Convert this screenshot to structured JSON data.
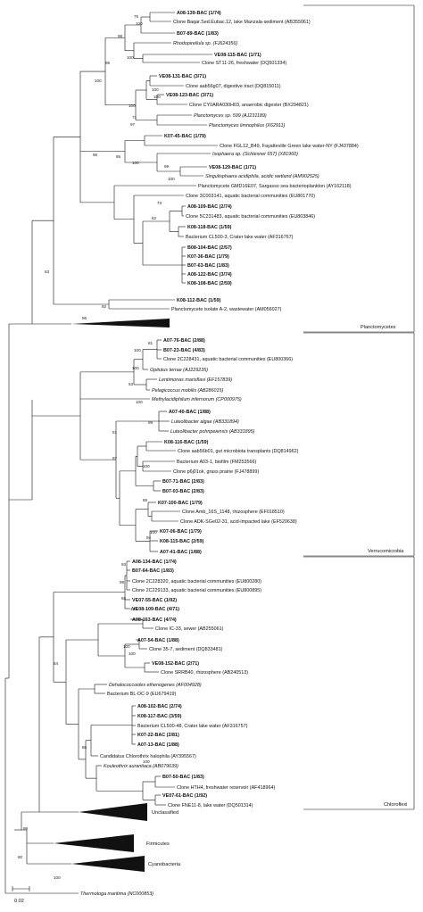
{
  "tree": {
    "leaves": [
      {
        "id": "L1",
        "text": "A08-139-BAC (1/74)",
        "bold": true,
        "italic": false
      },
      {
        "id": "L2",
        "text": "Clone Baqar.Sed.Eubac.12, lake Manzala-sediment (AB355061)",
        "bold": false,
        "italic": false
      },
      {
        "id": "L3",
        "text": "B07-89-BAC (1/83)",
        "bold": true,
        "italic": false
      },
      {
        "id": "L4",
        "text": "Rhodopirellula sp. (FJ624356)",
        "bold": false,
        "italic": true
      },
      {
        "id": "L5",
        "text": "VE08-115-BAC (1/71)",
        "bold": true,
        "italic": false
      },
      {
        "id": "L6",
        "text": "Clone ST11-26, freshwater (DQ501334)",
        "bold": false,
        "italic": false
      },
      {
        "id": "L7",
        "text": "VE08-131-BAC (3/71)",
        "bold": true,
        "italic": false
      },
      {
        "id": "L8",
        "text": "Clone aab56g07, digestive tract (DQ815011)",
        "bold": false,
        "italic": false
      },
      {
        "id": "L9",
        "text": "VE08-123-BAC (3/71)",
        "bold": true,
        "italic": false
      },
      {
        "id": "L10",
        "text": "Clone CY0ARA030H03, anaerobic digester (BX294821)",
        "bold": false,
        "italic": false
      },
      {
        "id": "L11",
        "text": "Planctomyces sp. 599 (AJ231189)",
        "bold": false,
        "italic": true
      },
      {
        "id": "L12",
        "text": "Planctomyces limnophilus (X62911)",
        "bold": false,
        "italic": true
      },
      {
        "id": "L13",
        "text": "K07-45-BAC (1/79)",
        "bold": true,
        "italic": false
      },
      {
        "id": "L14",
        "text": "Clone FGL12_B49, Fayatteville Green lake water-NY (FJ437884)",
        "bold": false,
        "italic": false
      },
      {
        "id": "L15",
        "text": "Isophaera sp. (Schlesner 657) (X81960)",
        "bold": false,
        "italic": true
      },
      {
        "id": "L16",
        "text": "VE08-129-BAC (1/71)",
        "bold": true,
        "italic": false
      },
      {
        "id": "L17",
        "text": "Singulisphaera acidiphila, acidic wetland (AM902525)",
        "bold": false,
        "italic": true
      },
      {
        "id": "L18",
        "text": "Planctomycete GMD16E07, Sargasso sea bacterioplankton (AY162118)",
        "bold": false,
        "italic": false
      },
      {
        "id": "L19",
        "text": "Clone 3C003141, aquatic bacterial communities (EU801770)",
        "bold": false,
        "italic": false
      },
      {
        "id": "L20",
        "text": "A08-109-BAC (2/74)",
        "bold": true,
        "italic": false
      },
      {
        "id": "L21",
        "text": "Clone 5C231483, aquatic bacterial communities (EU803846)",
        "bold": false,
        "italic": false
      },
      {
        "id": "L22",
        "text": "K08-118-BAC (1/59)",
        "bold": true,
        "italic": false
      },
      {
        "id": "L23",
        "text": "Bacterium CL500-3, Crater lake water (AF316767)",
        "bold": false,
        "italic": false
      },
      {
        "id": "L24",
        "text": "B08-104-BAC (2/57)",
        "bold": true,
        "italic": false
      },
      {
        "id": "L25",
        "text": "K07-36-BAC (1/79)",
        "bold": true,
        "italic": false
      },
      {
        "id": "L26",
        "text": "B07-63-BAC (1/83)",
        "bold": true,
        "italic": false
      },
      {
        "id": "L27",
        "text": "A08-122-BAC (3/74)",
        "bold": true,
        "italic": false
      },
      {
        "id": "L28",
        "text": "K08-108-BAC (2/59)",
        "bold": true,
        "italic": false
      },
      {
        "id": "L29",
        "text": "K08-112-BAC (1/59)",
        "bold": true,
        "italic": false
      },
      {
        "id": "L30",
        "text": "Planctomycete isolate A-2, wastewater (AM056027)",
        "bold": false,
        "italic": false
      },
      {
        "id": "L31",
        "text": "A07-76-BAC (2/88)",
        "bold": true,
        "italic": false
      },
      {
        "id": "L32",
        "text": "B07-23-BAC (4/83)",
        "bold": true,
        "italic": false
      },
      {
        "id": "L33",
        "text": "Clone 2C228431, aquatic bacterial communities (EU800366)",
        "bold": false,
        "italic": false
      },
      {
        "id": "L34",
        "text": "Opitutus terrae (AJ229235)",
        "bold": false,
        "italic": true
      },
      {
        "id": "L35",
        "text": "Lentimonas marisflavi (EF157839)",
        "bold": false,
        "italic": true
      },
      {
        "id": "L36",
        "text": "Pelagicoccus mobilis (AB286015)",
        "bold": false,
        "italic": true
      },
      {
        "id": "L37",
        "text": "Methylacidiphilum infernorum (CP000975)",
        "bold": false,
        "italic": true
      },
      {
        "id": "L38",
        "text": "A07-40-BAC (1/88)",
        "bold": true,
        "italic": false
      },
      {
        "id": "L39",
        "text": "Luteolibacter algae (AB331894)",
        "bold": false,
        "italic": true
      },
      {
        "id": "L40",
        "text": "Luteolibacter pohnpeiensis (AB331895)",
        "bold": false,
        "italic": true
      },
      {
        "id": "L41",
        "text": "K08-116-BAC (1/59)",
        "bold": true,
        "italic": false
      },
      {
        "id": "L42",
        "text": "Clone aab56b01, gut microbiota transplants (DQ814962)",
        "bold": false,
        "italic": false
      },
      {
        "id": "L43",
        "text": "Bacterium A03-1, biofilm (FM253566)",
        "bold": false,
        "italic": false
      },
      {
        "id": "L44",
        "text": "Clone p6j01ok, grass prairie (FJ478899)",
        "bold": false,
        "italic": false
      },
      {
        "id": "L45",
        "text": "B07-71-BAC (2/83)",
        "bold": true,
        "italic": false
      },
      {
        "id": "L46",
        "text": "B07-03-BAC (2/83)",
        "bold": true,
        "italic": false
      },
      {
        "id": "L47",
        "text": "K07-100-BAC (1/79)",
        "bold": true,
        "italic": false
      },
      {
        "id": "L48",
        "text": "Clone Amb_16S_1148, rhizosphere (EF018510)",
        "bold": false,
        "italic": false
      },
      {
        "id": "L49",
        "text": "Clone ADK-SGe02-31, acid-impacted lake (EF520638)",
        "bold": false,
        "italic": false
      },
      {
        "id": "L50",
        "text": "K07-06-BAC (1/79)",
        "bold": true,
        "italic": false
      },
      {
        "id": "L51",
        "text": "K08-115-BAC (2/59)",
        "bold": true,
        "italic": false
      },
      {
        "id": "L52",
        "text": "A07-41-BAC (1/88)",
        "bold": true,
        "italic": false
      },
      {
        "id": "L53",
        "text": "A08-134-BAC (1/74)",
        "bold": true,
        "italic": false
      },
      {
        "id": "L54",
        "text": "B07-64-BAC (1/83)",
        "bold": true,
        "italic": false
      },
      {
        "id": "L55",
        "text": "Clone 2C228320, aquatic bacterial communities (EU800280)",
        "bold": false,
        "italic": false
      },
      {
        "id": "L56",
        "text": "Clone 2C229133, aquatic bacterial communities (EU800895)",
        "bold": false,
        "italic": false
      },
      {
        "id": "L57",
        "text": "VE07-55-BAC (1/92)",
        "bold": true,
        "italic": false
      },
      {
        "id": "L58",
        "text": "VE08-109-BAC (4/71)",
        "bold": true,
        "italic": false
      },
      {
        "id": "L59",
        "text": "A08-163-BAC (4/74)",
        "bold": true,
        "italic": false
      },
      {
        "id": "L60",
        "text": "Clone IC-33, sewer (AB255061)",
        "bold": false,
        "italic": false
      },
      {
        "id": "L61",
        "text": "A07-54-BAC (1/88)",
        "bold": true,
        "italic": false
      },
      {
        "id": "L62",
        "text": "Clone 35-7, sediment (DQ833481)",
        "bold": false,
        "italic": false
      },
      {
        "id": "L63",
        "text": "VE08-152-BAC (2/71)",
        "bold": true,
        "italic": false
      },
      {
        "id": "L64",
        "text": "Clone SRRB40, rhizosphere (AB240513)",
        "bold": false,
        "italic": false
      },
      {
        "id": "L65",
        "text": "Dehalococcoides ethenogenes (AF004928)",
        "bold": false,
        "italic": true
      },
      {
        "id": "L66",
        "text": "Bacterium BL-DC-9 (EU679419)",
        "bold": false,
        "italic": false
      },
      {
        "id": "L67",
        "text": "A08-102-BAC (2/74)",
        "bold": true,
        "italic": false
      },
      {
        "id": "L68",
        "text": "K08-117-BAC (3/59)",
        "bold": true,
        "italic": false
      },
      {
        "id": "L69",
        "text": "Bacterium CL500-48, Crater lake water (AF316757)",
        "bold": false,
        "italic": false
      },
      {
        "id": "L70",
        "text": "K07-22-BAC (2/81)",
        "bold": true,
        "italic": false
      },
      {
        "id": "L71",
        "text": "A07-13-BAC (1/88)",
        "bold": true,
        "italic": false
      },
      {
        "id": "L72",
        "text": "Candidatus Chlorothrix halophila (AY395567)",
        "bold": false,
        "italic": false
      },
      {
        "id": "L73",
        "text": "Kouleothrix aurantiaca (AB079639)",
        "bold": false,
        "italic": true
      },
      {
        "id": "L74",
        "text": "B07-50-BAC (1/83)",
        "bold": true,
        "italic": false
      },
      {
        "id": "L75",
        "text": "Clone HTH4, freshwater reservoir (AF418964)",
        "bold": false,
        "italic": false
      },
      {
        "id": "L76",
        "text": "VE07-61-BAC (1/92)",
        "bold": true,
        "italic": false
      },
      {
        "id": "L77",
        "text": "Clone FNE11-8, lake water (DQ501314)",
        "bold": false,
        "italic": false
      },
      {
        "id": "L78",
        "text": "Thermotoga maritima (NC000853)",
        "bold": false,
        "italic": true
      }
    ],
    "bootstraps": [
      "76",
      "100",
      "98",
      "95",
      "100",
      "100",
      "71",
      "97",
      "100",
      "100",
      "100",
      "85",
      "100",
      "99",
      "100",
      "73",
      "62",
      "96",
      "63",
      "92",
      "96",
      "100",
      "81",
      "100",
      "100",
      "53",
      "100",
      "99",
      "51",
      "97",
      "100",
      "85",
      "94",
      "100",
      "93",
      "99",
      "65",
      "100",
      "54",
      "100",
      "100",
      "86",
      "100",
      "99",
      "80",
      "100"
    ],
    "groups": [
      "Planctomycetes",
      "Verrucomicrobia",
      "Chloroflexi",
      "Unclassified",
      "Firmicutes",
      "Cyanobacteria"
    ],
    "scale_bar": "0.02"
  }
}
